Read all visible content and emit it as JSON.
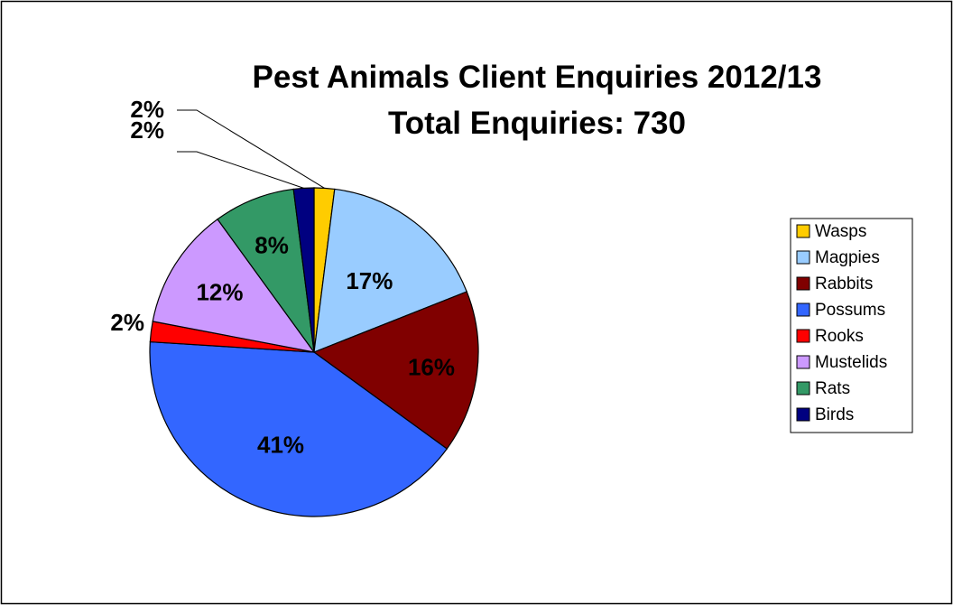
{
  "chart_data": {
    "type": "pie",
    "title": "Pest Animals Client Enquiries 2012/13",
    "subtitle": "Total Enquiries:  730",
    "legend_position": "right",
    "slices": [
      {
        "name": "Wasps",
        "value": 2,
        "label": "2%",
        "color": "#FFCC00"
      },
      {
        "name": "Magpies",
        "value": 17,
        "label": "17%",
        "color": "#99CCFF"
      },
      {
        "name": "Rabbits",
        "value": 16,
        "label": "16%",
        "color": "#800000"
      },
      {
        "name": "Possums",
        "value": 41,
        "label": "41%",
        "color": "#3366FF"
      },
      {
        "name": "Rooks",
        "value": 2,
        "label": "2%",
        "color": "#FF0000"
      },
      {
        "name": "Mustelids",
        "value": 12,
        "label": "12%",
        "color": "#CC99FF"
      },
      {
        "name": "Rats",
        "value": 8,
        "label": "8%",
        "color": "#339966"
      },
      {
        "name": "Birds",
        "value": 2,
        "label": "2%",
        "color": "#000080"
      }
    ]
  }
}
